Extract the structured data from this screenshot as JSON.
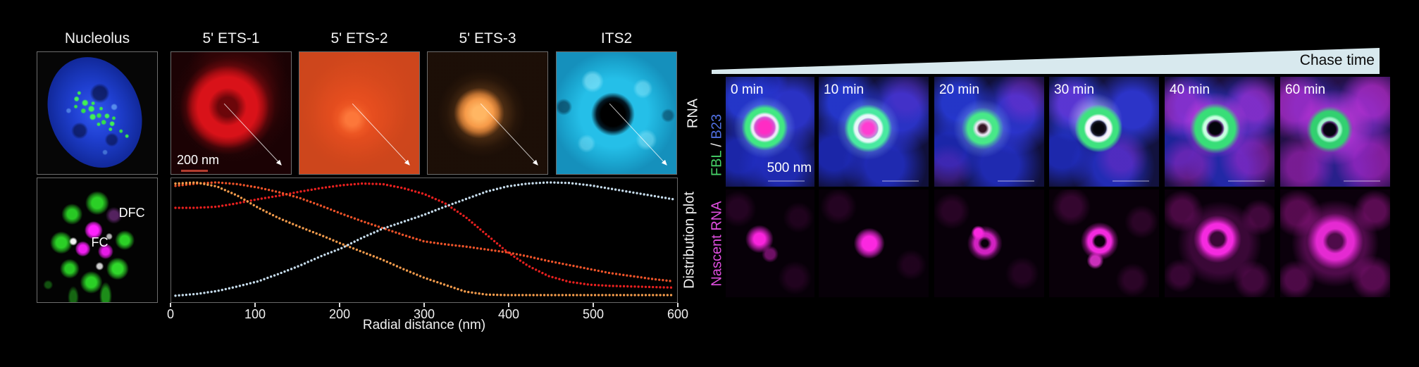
{
  "left_panel": {
    "column_titles": [
      "Nucleolus",
      "5' ETS-1",
      "5' ETS-2",
      "5' ETS-3",
      "ITS2"
    ],
    "row1_side_label": "RNA",
    "row2_side_label": "Distribution plot",
    "scale_bar_label": "200 nm",
    "fc_dfc_image": {
      "dfc_label": "DFC",
      "fc_label": "FC"
    }
  },
  "chart_data": {
    "type": "line",
    "style": "dotted",
    "x_nm": [
      0,
      25,
      50,
      75,
      100,
      125,
      150,
      175,
      200,
      225,
      250,
      275,
      300,
      325,
      350,
      375,
      400,
      425,
      450,
      475,
      500,
      525,
      550,
      575,
      600
    ],
    "series": [
      {
        "name": "5' ETS-1",
        "color": "#e8201f",
        "values": [
          0.78,
          0.78,
          0.79,
          0.82,
          0.855,
          0.885,
          0.92,
          0.95,
          0.975,
          0.99,
          0.985,
          0.95,
          0.9,
          0.82,
          0.7,
          0.55,
          0.4,
          0.28,
          0.19,
          0.14,
          0.115,
          0.105,
          0.1,
          0.095,
          0.09
        ]
      },
      {
        "name": "5' ETS-2",
        "color": "#ee5329",
        "values": [
          0.97,
          0.99,
          1.0,
          0.985,
          0.955,
          0.915,
          0.865,
          0.8,
          0.73,
          0.665,
          0.605,
          0.545,
          0.49,
          0.465,
          0.445,
          0.42,
          0.395,
          0.36,
          0.32,
          0.285,
          0.25,
          0.215,
          0.19,
          0.165,
          0.145
        ]
      },
      {
        "name": "5' ETS-3",
        "color": "#f59c4c",
        "values": [
          0.99,
          1.0,
          0.965,
          0.885,
          0.78,
          0.69,
          0.615,
          0.545,
          0.47,
          0.4,
          0.33,
          0.25,
          0.175,
          0.115,
          0.055,
          0.03,
          0.025,
          0.025,
          0.025,
          0.025,
          0.025,
          0.025,
          0.025,
          0.025,
          0.025
        ]
      },
      {
        "name": "ITS2",
        "color": "#c6dcec",
        "values": [
          0.02,
          0.035,
          0.06,
          0.1,
          0.145,
          0.21,
          0.28,
          0.36,
          0.43,
          0.52,
          0.6,
          0.66,
          0.72,
          0.79,
          0.855,
          0.92,
          0.965,
          0.99,
          1.0,
          0.995,
          0.975,
          0.945,
          0.915,
          0.885,
          0.855
        ]
      }
    ],
    "title": "",
    "xlabel": "Radial distance (nm)",
    "ylabel": "",
    "x_ticks": [
      0,
      100,
      200,
      300,
      400,
      500,
      600
    ],
    "xlim": [
      0,
      600
    ],
    "ylim": [
      0,
      1.05
    ],
    "grid": false,
    "legend_position": "none"
  },
  "right_panel": {
    "chase_arrow_label": "Chase time",
    "timepoints": [
      "0 min",
      "10 min",
      "20 min",
      "30 min",
      "40 min",
      "60 min"
    ],
    "top_row_side_label": {
      "part1": "FBL",
      "separator": " / ",
      "part2": "B23"
    },
    "top_row_scale_label": "500 nm",
    "bottom_row_side_label": "Nascent RNA"
  },
  "colors": {
    "ets1_red": "#e8201f",
    "ets2_vermilion": "#ee5329",
    "ets3_orange": "#f59c4c",
    "its2_pale_blue": "#c6dcec",
    "chase_wedge": "#d8e9ee",
    "fbl_green": "#46d167",
    "b23_blue": "#4f6fe0",
    "nascent_rna_magenta": "#e04fe0"
  }
}
